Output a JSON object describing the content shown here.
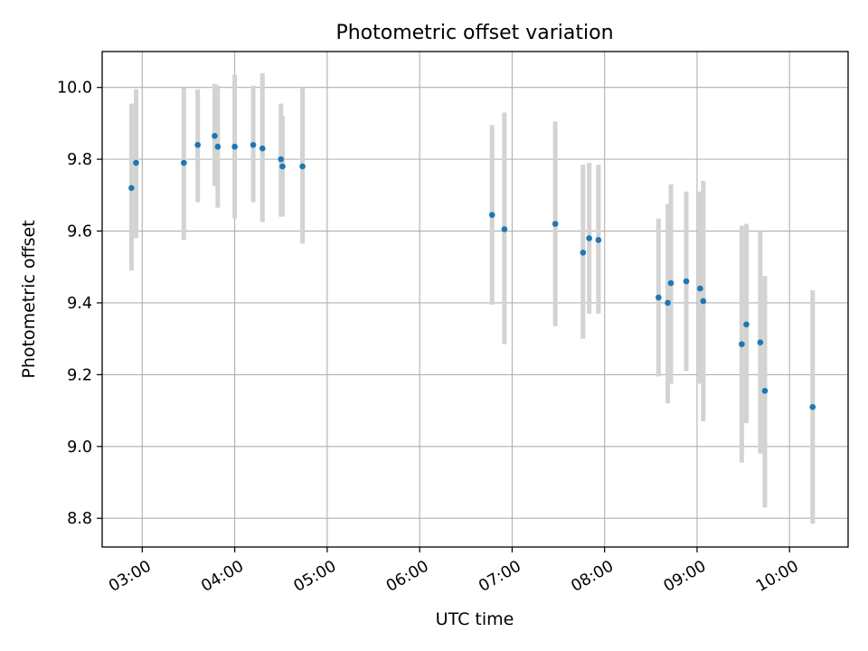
{
  "chart_data": {
    "type": "scatter",
    "title": "Photometric offset variation",
    "xlabel": "UTC time",
    "ylabel": "Photometric offset",
    "xlim": [
      "02:34",
      "10:38"
    ],
    "ylim": [
      8.72,
      10.1
    ],
    "grid": true,
    "x_ticks": [
      "03:00",
      "04:00",
      "05:00",
      "06:00",
      "07:00",
      "08:00",
      "09:00",
      "10:00"
    ],
    "y_ticks": [
      "8.8",
      "9.0",
      "9.2",
      "9.4",
      "9.6",
      "9.8",
      "10.0"
    ],
    "colors": {
      "points": "#1f77b4",
      "error_bars": "#d3d3d3",
      "grid": "#b0b0b0"
    },
    "points": [
      {
        "x": "02:53",
        "y": 9.72,
        "yerr": [
          9.49,
          9.955
        ]
      },
      {
        "x": "02:56",
        "y": 9.79,
        "yerr": [
          9.58,
          9.995
        ]
      },
      {
        "x": "03:27",
        "y": 9.79,
        "yerr": [
          9.575,
          10.0
        ]
      },
      {
        "x": "03:36",
        "y": 9.84,
        "yerr": [
          9.68,
          9.995
        ]
      },
      {
        "x": "03:47",
        "y": 9.865,
        "yerr": [
          9.725,
          10.01
        ]
      },
      {
        "x": "03:49",
        "y": 9.835,
        "yerr": [
          9.665,
          10.005
        ]
      },
      {
        "x": "04:00",
        "y": 9.835,
        "yerr": [
          9.635,
          10.035
        ]
      },
      {
        "x": "04:12",
        "y": 9.84,
        "yerr": [
          9.68,
          10.005
        ]
      },
      {
        "x": "04:18",
        "y": 9.83,
        "yerr": [
          9.625,
          10.04
        ]
      },
      {
        "x": "04:30",
        "y": 9.8,
        "yerr": [
          9.64,
          9.955
        ]
      },
      {
        "x": "04:31",
        "y": 9.78,
        "yerr": [
          9.64,
          9.92
        ]
      },
      {
        "x": "04:44",
        "y": 9.78,
        "yerr": [
          9.565,
          10.0
        ]
      },
      {
        "x": "06:47",
        "y": 9.645,
        "yerr": [
          9.395,
          9.895
        ]
      },
      {
        "x": "06:55",
        "y": 9.605,
        "yerr": [
          9.285,
          9.93
        ]
      },
      {
        "x": "07:28",
        "y": 9.62,
        "yerr": [
          9.335,
          9.905
        ]
      },
      {
        "x": "07:46",
        "y": 9.54,
        "yerr": [
          9.3,
          9.785
        ]
      },
      {
        "x": "07:50",
        "y": 9.58,
        "yerr": [
          9.37,
          9.79
        ]
      },
      {
        "x": "07:56",
        "y": 9.575,
        "yerr": [
          9.37,
          9.785
        ]
      },
      {
        "x": "08:35",
        "y": 9.415,
        "yerr": [
          9.195,
          9.635
        ]
      },
      {
        "x": "08:41",
        "y": 9.4,
        "yerr": [
          9.12,
          9.675
        ]
      },
      {
        "x": "08:43",
        "y": 9.455,
        "yerr": [
          9.175,
          9.73
        ]
      },
      {
        "x": "08:53",
        "y": 9.46,
        "yerr": [
          9.21,
          9.71
        ]
      },
      {
        "x": "09:02",
        "y": 9.44,
        "yerr": [
          9.175,
          9.71
        ]
      },
      {
        "x": "09:04",
        "y": 9.405,
        "yerr": [
          9.07,
          9.74
        ]
      },
      {
        "x": "09:29",
        "y": 9.285,
        "yerr": [
          8.955,
          9.615
        ]
      },
      {
        "x": "09:32",
        "y": 9.34,
        "yerr": [
          9.065,
          9.62
        ]
      },
      {
        "x": "09:41",
        "y": 9.29,
        "yerr": [
          8.98,
          9.6
        ]
      },
      {
        "x": "09:44",
        "y": 9.155,
        "yerr": [
          8.83,
          9.475
        ]
      },
      {
        "x": "10:15",
        "y": 9.11,
        "yerr": [
          8.785,
          9.435
        ]
      }
    ]
  }
}
